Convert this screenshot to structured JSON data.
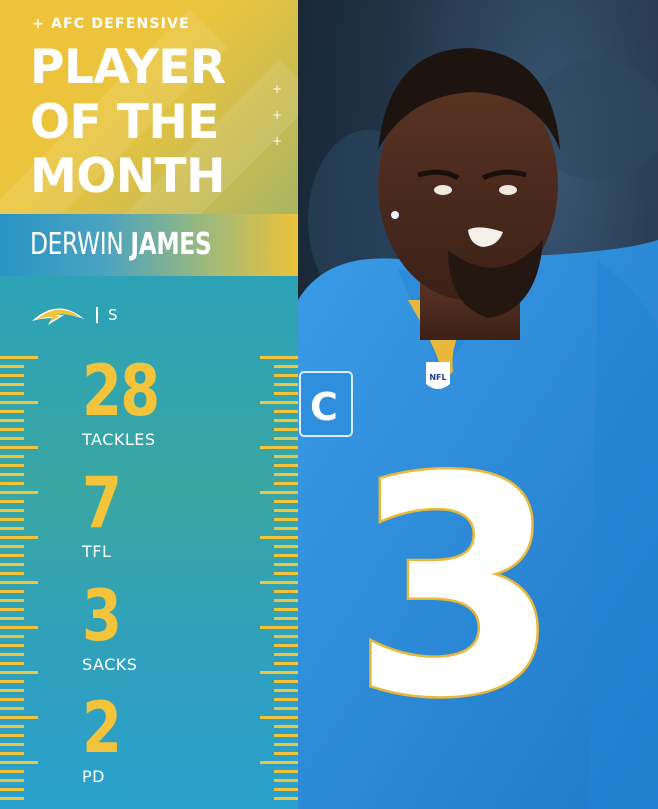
{
  "kicker": "+ AFC DEFENSIVE",
  "title_lines": [
    "PLAYER",
    "OF THE",
    "MONTH"
  ],
  "player": {
    "first_name": "DERWIN",
    "last_name": "JAMES",
    "position": "S"
  },
  "stats": [
    {
      "value": "28",
      "label": "TACKLES"
    },
    {
      "value": "7",
      "label": "TFL"
    },
    {
      "value": "3",
      "label": "SACKS"
    },
    {
      "value": "2",
      "label": "PD"
    }
  ],
  "jersey": {
    "number": "3",
    "captain_patch": "C",
    "nfl_shield": "NFL"
  },
  "colors": {
    "gold": "#f2c33b",
    "powder_blue": "#2a8fd8",
    "teal": "#35a2b3"
  }
}
